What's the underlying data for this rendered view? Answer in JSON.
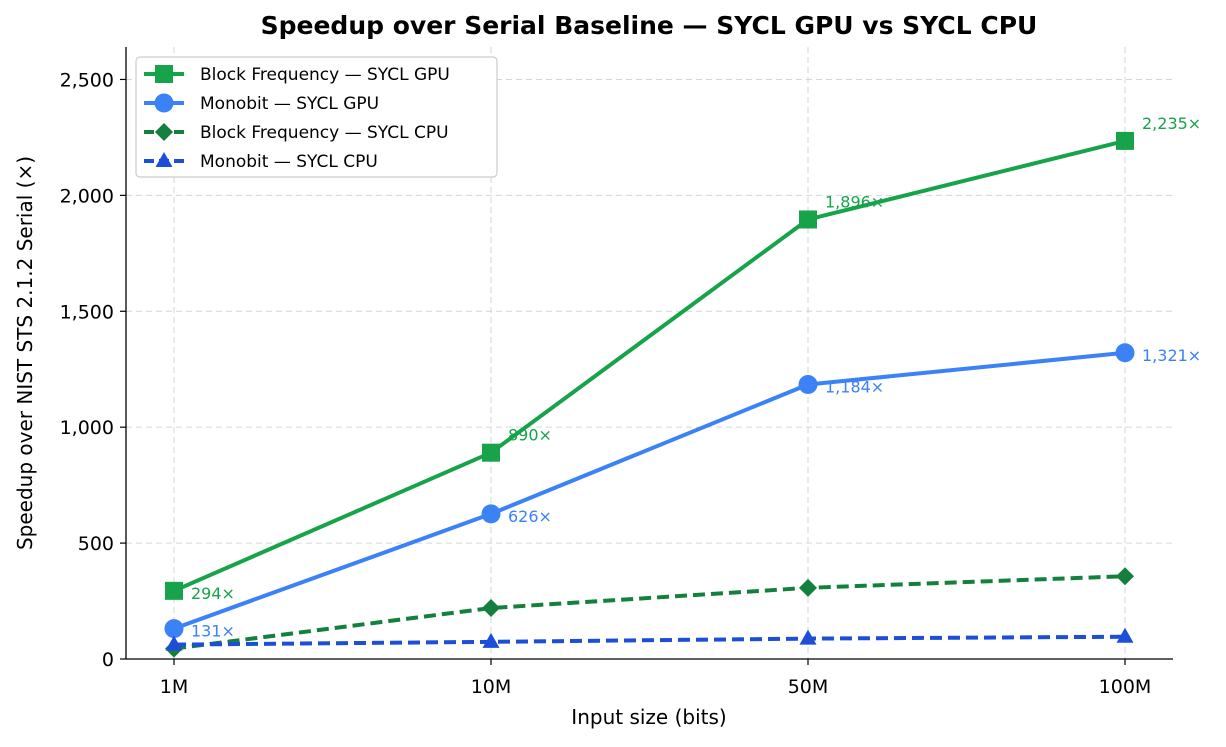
{
  "chart_data": {
    "type": "line",
    "title": "Speedup over Serial Baseline — SYCL GPU vs SYCL CPU",
    "xlabel": "Input size (bits)",
    "ylabel": "Speedup over NIST STS 2.1.2 Serial (×)",
    "categories": [
      "1M",
      "10M",
      "50M",
      "100M"
    ],
    "ylim": [
      0,
      2640
    ],
    "yticks": [
      0,
      500,
      1000,
      1500,
      2000,
      2500
    ],
    "ytick_labels": [
      "0",
      "500",
      "1,000",
      "1,500",
      "2,000",
      "2,500"
    ],
    "grid": true,
    "legend_position": "top-left",
    "series": [
      {
        "name": "Block Frequency — SYCL GPU",
        "values": [
          294,
          890,
          1896,
          2235
        ],
        "labels": [
          "294×",
          "890×",
          "1,896×",
          "2,235×"
        ],
        "color": "#16a34a",
        "marker": "square",
        "line_style": "solid"
      },
      {
        "name": "Monobit — SYCL GPU",
        "values": [
          131,
          626,
          1184,
          1321
        ],
        "labels": [
          "131×",
          "626×",
          "1,184×",
          "1,321×"
        ],
        "color": "#3b82f6",
        "marker": "circle",
        "line_style": "solid"
      },
      {
        "name": "Block Frequency — SYCL CPU",
        "values": [
          45,
          220,
          307,
          357
        ],
        "color": "#15803d",
        "marker": "diamond",
        "line_style": "dashed"
      },
      {
        "name": "Monobit — SYCL CPU",
        "values": [
          62,
          74,
          88,
          96
        ],
        "color": "#1d4ed8",
        "marker": "triangle",
        "line_style": "dashed"
      }
    ]
  }
}
